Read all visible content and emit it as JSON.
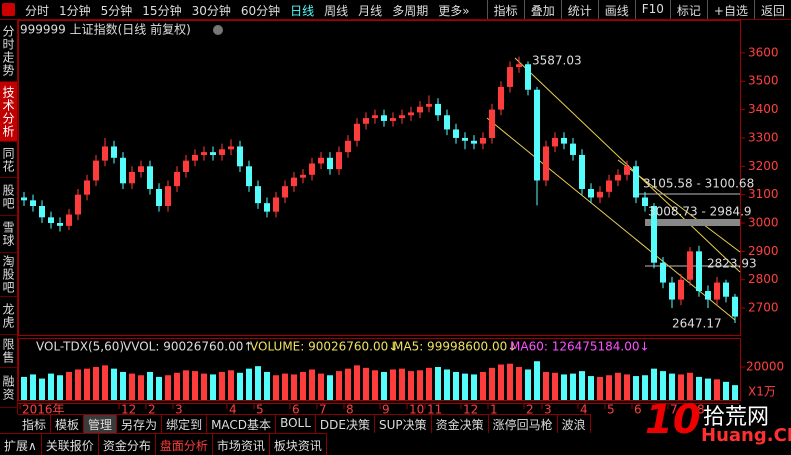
{
  "ui": {
    "toolbar": {
      "periods": [
        "分时",
        "1分钟",
        "5分钟",
        "15分钟",
        "30分钟",
        "60分钟",
        "日线",
        "周线",
        "月线",
        "多周期",
        "更多»"
      ],
      "tools": [
        "指标",
        "叠加",
        "统计",
        "画线",
        "F10",
        "标记",
        "+自选",
        "返回"
      ]
    },
    "sidebar": [
      "分时走势",
      "技术分析",
      "同花",
      "股吧",
      "雪球",
      "淘股吧",
      "龙虎",
      "限售",
      "融资"
    ],
    "bottom_tabs": [
      "指标",
      "模板",
      "管理",
      "另存为",
      "绑定到",
      "MACD基本",
      "BOLL",
      "DDE决策",
      "SUP决策",
      "资金决策",
      "涨停回马枪",
      "波浪"
    ],
    "bottom_nav": [
      "扩展∧",
      "关联报价",
      "资金分布",
      "盘面分析",
      "市场资讯",
      "板块资讯"
    ],
    "watermark": {
      "logo": "10",
      "name": "拾荒网",
      "domain": "Huang.CN"
    }
  },
  "chart_data": {
    "type": "candlestick",
    "title": "999999 上证指数(日线 前复权)",
    "categories": [
      "2016年",
      null,
      null,
      null,
      null,
      null,
      null,
      null,
      null,
      null,
      null,
      "12",
      null,
      null,
      "2",
      null,
      null,
      "3",
      null,
      null,
      null,
      null,
      null,
      "4",
      null,
      null,
      "5",
      null,
      null,
      null,
      "6",
      null,
      null,
      "7",
      null,
      null,
      "8",
      null,
      null,
      null,
      "9",
      null,
      null,
      "10",
      null,
      "11",
      null,
      null,
      null,
      "12",
      null,
      null,
      "1",
      null,
      null,
      null,
      "2",
      null,
      "3",
      null,
      null,
      null,
      "4",
      null,
      null,
      "5",
      null,
      null,
      "6",
      null,
      null,
      null,
      "7",
      null,
      null,
      "8",
      null,
      null,
      null,
      null
    ],
    "open": [
      3090,
      3080,
      3060,
      3020,
      3000,
      2990,
      3030,
      3100,
      3150,
      3220,
      3270,
      3230,
      3140,
      3180,
      3200,
      3120,
      3060,
      3130,
      3180,
      3220,
      3240,
      3250,
      3240,
      3260,
      3270,
      3200,
      3130,
      3070,
      3040,
      3090,
      3130,
      3160,
      3170,
      3210,
      3230,
      3190,
      3250,
      3290,
      3350,
      3370,
      3380,
      3360,
      3370,
      3380,
      3390,
      3410,
      3420,
      3380,
      3330,
      3300,
      3290,
      3280,
      3300,
      3400,
      3480,
      3550,
      3560,
      3470,
      3150,
      3270,
      3300,
      3280,
      3240,
      3120,
      3090,
      3110,
      3150,
      3170,
      3200,
      3090,
      3060,
      2860,
      2790,
      2730,
      2800,
      2900,
      2760,
      2730,
      2790,
      2740
    ],
    "high": [
      3110,
      3100,
      3080,
      3040,
      3020,
      3050,
      3120,
      3170,
      3240,
      3300,
      3290,
      3250,
      3200,
      3220,
      3220,
      3140,
      3150,
      3200,
      3240,
      3260,
      3270,
      3270,
      3280,
      3295,
      3290,
      3220,
      3150,
      3090,
      3110,
      3150,
      3180,
      3190,
      3230,
      3250,
      3250,
      3270,
      3310,
      3370,
      3390,
      3400,
      3400,
      3390,
      3400,
      3410,
      3430,
      3450,
      3440,
      3400,
      3350,
      3320,
      3310,
      3320,
      3420,
      3500,
      3570,
      3587.03,
      3570,
      3480,
      3290,
      3320,
      3320,
      3300,
      3260,
      3140,
      3130,
      3170,
      3190,
      3220,
      3220,
      3110,
      3070,
      2880,
      2810,
      2820,
      2915,
      2920,
      2780,
      2810,
      2800,
      2750
    ],
    "low": [
      3060,
      3040,
      3000,
      2980,
      2970,
      2975,
      3010,
      3080,
      3130,
      3200,
      3210,
      3120,
      3120,
      3160,
      3100,
      3040,
      3040,
      3110,
      3160,
      3200,
      3220,
      3220,
      3220,
      3240,
      3180,
      3110,
      3050,
      3020,
      3020,
      3070,
      3110,
      3140,
      3150,
      3190,
      3170,
      3170,
      3230,
      3270,
      3330,
      3350,
      3340,
      3340,
      3350,
      3360,
      3370,
      3390,
      3360,
      3310,
      3280,
      3260,
      3260,
      3260,
      3280,
      3380,
      3460,
      3530,
      3450,
      3062,
      3130,
      3250,
      3260,
      3220,
      3100,
      3070,
      3070,
      3090,
      3130,
      3150,
      3070,
      3040,
      2840,
      2770,
      2700,
      2710,
      2780,
      2740,
      2700,
      2710,
      2720,
      2647.17
    ],
    "close": [
      3080,
      3060,
      3020,
      3000,
      2990,
      3030,
      3100,
      3150,
      3220,
      3270,
      3230,
      3140,
      3180,
      3200,
      3120,
      3060,
      3130,
      3180,
      3220,
      3240,
      3250,
      3240,
      3260,
      3270,
      3200,
      3130,
      3070,
      3040,
      3090,
      3130,
      3160,
      3170,
      3210,
      3230,
      3190,
      3250,
      3290,
      3350,
      3370,
      3380,
      3360,
      3370,
      3380,
      3390,
      3410,
      3420,
      3380,
      3330,
      3300,
      3290,
      3280,
      3300,
      3400,
      3480,
      3550,
      3560,
      3470,
      3150,
      3270,
      3300,
      3280,
      3240,
      3120,
      3090,
      3110,
      3150,
      3170,
      3200,
      3090,
      3060,
      2860,
      2790,
      2730,
      2800,
      2900,
      2760,
      2730,
      2790,
      2740,
      2670
    ],
    "up_color": "#ff3c3c",
    "down_color": "#54fcfc",
    "ylim": [
      2605,
      3716
    ],
    "yticks": [
      2700,
      2800,
      2900,
      3000,
      3100,
      3200,
      3300,
      3400,
      3500,
      3600
    ],
    "annotations": [
      "3587.03",
      "3105.58 - 3100.68",
      "3008.73 - 2984.9",
      "2823.93",
      "2647.17"
    ],
    "volume": {
      "title": "VOL-TDX(5,60)",
      "readouts": [
        "VVOL: 90026760.00↑",
        "VOLUME: 90026760.00↓",
        "MA5: 99998600.00↓",
        "MA60: 126475184.00↓"
      ],
      "values": [
        14000,
        15500,
        13000,
        16000,
        15000,
        17000,
        18500,
        19000,
        20000,
        21000,
        19000,
        17000,
        16000,
        15000,
        17000,
        14000,
        15000,
        16500,
        18000,
        17500,
        16000,
        15500,
        17000,
        18000,
        16500,
        19000,
        20500,
        17000,
        15000,
        16000,
        15500,
        17000,
        18500,
        16000,
        15000,
        17500,
        19000,
        21000,
        19500,
        18000,
        17000,
        18500,
        19000,
        17500,
        18000,
        19500,
        20000,
        18500,
        17000,
        16000,
        15500,
        17000,
        19500,
        21500,
        22000,
        20000,
        18500,
        23500,
        17000,
        16500,
        15500,
        16000,
        17500,
        14500,
        14000,
        15000,
        16500,
        15500,
        14500,
        15000,
        19000,
        17500,
        16000,
        15500,
        16500,
        14000,
        13000,
        12500,
        11000,
        9002.676
      ],
      "ylim": [
        0,
        27270
      ],
      "yticks": [
        20000
      ],
      "unit_label": "X1万"
    }
  }
}
